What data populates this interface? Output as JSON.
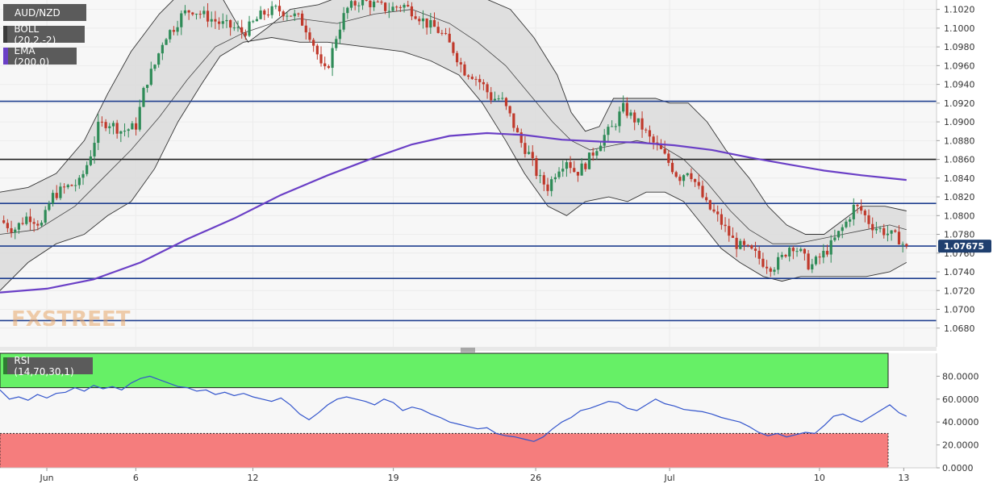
{
  "legend": {
    "symbol": "AUD/NZD",
    "boll": "BOLL (20,2,-2)",
    "ema": "EMA (200,0)",
    "rsi": "RSI (14,70,30,1)"
  },
  "watermark": "FXSTREET",
  "price_tag": "1.07675",
  "colors": {
    "up": "#2e8b57",
    "down": "#c0392b",
    "ema": "#6a3fc6",
    "hline": "#1f3f8f",
    "band_fill": "#dcdcdc",
    "rsi_line": "#3355cc",
    "overbought": "#66f066",
    "oversold": "#f57d7d",
    "tag": "#1f3f6f"
  },
  "chart_data": [
    {
      "type": "candlestick",
      "title": "AUD/NZD",
      "ylim": [
        1.066,
        1.103
      ],
      "yticks": [
        "1.1020",
        "1.1000",
        "1.0980",
        "1.0960",
        "1.0940",
        "1.0920",
        "1.0900",
        "1.0880",
        "1.0860",
        "1.0840",
        "1.0820",
        "1.0800",
        "1.0780",
        "1.0760",
        "1.0740",
        "1.0720",
        "1.0700",
        "1.0680"
      ],
      "xticks": [
        {
          "label": "Jun",
          "x": 0.05
        },
        {
          "label": "6",
          "x": 0.145
        },
        {
          "label": "12",
          "x": 0.27
        },
        {
          "label": "19",
          "x": 0.42
        },
        {
          "label": "26",
          "x": 0.572
        },
        {
          "label": "Jul",
          "x": 0.715
        },
        {
          "label": "10",
          "x": 0.875
        },
        {
          "label": "13",
          "x": 0.965
        }
      ],
      "last_price": 1.07675,
      "horizontal_levels": [
        {
          "value": 1.0922,
          "color": "#1f3f8f"
        },
        {
          "value": 1.086,
          "color": "#222222"
        },
        {
          "value": 1.0813,
          "color": "#1f3f8f"
        },
        {
          "value": 1.07675,
          "color": "#1f3f8f"
        },
        {
          "value": 1.0733,
          "color": "#1f3f8f"
        },
        {
          "value": 1.0688,
          "color": "#1f3f8f"
        }
      ],
      "close_path": [
        [
          0.0,
          1.0795
        ],
        [
          0.015,
          1.0785
        ],
        [
          0.03,
          1.08
        ],
        [
          0.045,
          1.079
        ],
        [
          0.055,
          1.082
        ],
        [
          0.07,
          1.083
        ],
        [
          0.085,
          1.0835
        ],
        [
          0.095,
          1.086
        ],
        [
          0.105,
          1.0895
        ],
        [
          0.115,
          1.09
        ],
        [
          0.13,
          1.089
        ],
        [
          0.145,
          1.0895
        ],
        [
          0.155,
          1.094
        ],
        [
          0.165,
          1.096
        ],
        [
          0.175,
          1.099
        ],
        [
          0.185,
          1.1
        ],
        [
          0.195,
          1.1015
        ],
        [
          0.205,
          1.102
        ],
        [
          0.215,
          1.1015
        ],
        [
          0.225,
          1.101
        ],
        [
          0.235,
          1.1005
        ],
        [
          0.25,
          1.1
        ],
        [
          0.26,
          1.0995
        ],
        [
          0.27,
          1.1005
        ],
        [
          0.28,
          1.1015
        ],
        [
          0.295,
          1.102
        ],
        [
          0.31,
          1.1015
        ],
        [
          0.32,
          1.101
        ],
        [
          0.33,
          1.0995
        ],
        [
          0.338,
          1.0975
        ],
        [
          0.345,
          1.095
        ],
        [
          0.352,
          1.0965
        ],
        [
          0.36,
          1.0995
        ],
        [
          0.37,
          1.102
        ],
        [
          0.385,
          1.103
        ],
        [
          0.4,
          1.1025
        ],
        [
          0.415,
          1.102
        ],
        [
          0.43,
          1.1025
        ],
        [
          0.445,
          1.1015
        ],
        [
          0.455,
          1.1005
        ],
        [
          0.465,
          1.1
        ],
        [
          0.475,
          1.099
        ],
        [
          0.485,
          1.0975
        ],
        [
          0.495,
          1.0955
        ],
        [
          0.505,
          1.095
        ],
        [
          0.515,
          1.094
        ],
        [
          0.525,
          1.0925
        ],
        [
          0.535,
          1.0925
        ],
        [
          0.545,
          1.0905
        ],
        [
          0.555,
          1.088
        ],
        [
          0.565,
          1.0865
        ],
        [
          0.575,
          1.084
        ],
        [
          0.585,
          1.083
        ],
        [
          0.595,
          1.085
        ],
        [
          0.605,
          1.086
        ],
        [
          0.615,
          1.0845
        ],
        [
          0.625,
          1.0855
        ],
        [
          0.635,
          1.087
        ],
        [
          0.645,
          1.0885
        ],
        [
          0.655,
          1.0895
        ],
        [
          0.665,
          1.0915
        ],
        [
          0.675,
          1.0905
        ],
        [
          0.685,
          1.0895
        ],
        [
          0.695,
          1.088
        ],
        [
          0.705,
          1.087
        ],
        [
          0.715,
          1.0855
        ],
        [
          0.725,
          1.084
        ],
        [
          0.735,
          1.085
        ],
        [
          0.745,
          1.083
        ],
        [
          0.755,
          1.081
        ],
        [
          0.765,
          1.08
        ],
        [
          0.775,
          1.0785
        ],
        [
          0.785,
          1.077
        ],
        [
          0.795,
          1.0765
        ],
        [
          0.805,
          1.076
        ],
        [
          0.815,
          1.075
        ],
        [
          0.825,
          1.0745
        ],
        [
          0.835,
          1.0755
        ],
        [
          0.845,
          1.077
        ],
        [
          0.855,
          1.076
        ],
        [
          0.865,
          1.0745
        ],
        [
          0.875,
          1.0755
        ],
        [
          0.885,
          1.0765
        ],
        [
          0.895,
          1.078
        ],
        [
          0.905,
          1.0795
        ],
        [
          0.912,
          1.081
        ],
        [
          0.92,
          1.0805
        ],
        [
          0.93,
          1.079
        ],
        [
          0.94,
          1.0785
        ],
        [
          0.95,
          1.078
        ],
        [
          0.96,
          1.0775
        ],
        [
          0.968,
          1.0765
        ]
      ],
      "upper_band": [
        [
          0.0,
          1.0825
        ],
        [
          0.03,
          1.083
        ],
        [
          0.06,
          1.0845
        ],
        [
          0.09,
          1.088
        ],
        [
          0.115,
          1.093
        ],
        [
          0.14,
          1.0975
        ],
        [
          0.17,
          1.1015
        ],
        [
          0.2,
          1.1045
        ],
        [
          0.23,
          1.1045
        ],
        [
          0.25,
          1.101
        ],
        [
          0.265,
          1.0985
        ],
        [
          0.285,
          1.1
        ],
        [
          0.31,
          1.102
        ],
        [
          0.34,
          1.1025
        ],
        [
          0.38,
          1.104
        ],
        [
          0.42,
          1.105
        ],
        [
          0.45,
          1.1045
        ],
        [
          0.48,
          1.104
        ],
        [
          0.51,
          1.1035
        ],
        [
          0.545,
          1.102
        ],
        [
          0.57,
          1.099
        ],
        [
          0.595,
          1.095
        ],
        [
          0.61,
          1.091
        ],
        [
          0.625,
          1.089
        ],
        [
          0.64,
          1.0895
        ],
        [
          0.655,
          1.0925
        ],
        [
          0.68,
          1.0925
        ],
        [
          0.7,
          1.0925
        ],
        [
          0.715,
          1.092
        ],
        [
          0.735,
          1.092
        ],
        [
          0.755,
          1.09
        ],
        [
          0.775,
          1.087
        ],
        [
          0.8,
          1.084
        ],
        [
          0.82,
          1.081
        ],
        [
          0.84,
          1.079
        ],
        [
          0.86,
          1.078
        ],
        [
          0.88,
          1.078
        ],
        [
          0.9,
          1.0795
        ],
        [
          0.92,
          1.081
        ],
        [
          0.945,
          1.081
        ],
        [
          0.968,
          1.0805
        ]
      ],
      "middle_band": [
        [
          0.0,
          1.078
        ],
        [
          0.04,
          1.0785
        ],
        [
          0.08,
          1.081
        ],
        [
          0.11,
          1.084
        ],
        [
          0.14,
          1.087
        ],
        [
          0.17,
          1.0905
        ],
        [
          0.2,
          1.0945
        ],
        [
          0.23,
          1.098
        ],
        [
          0.26,
          1.0995
        ],
        [
          0.29,
          1.1005
        ],
        [
          0.32,
          1.101
        ],
        [
          0.36,
          1.1005
        ],
        [
          0.4,
          1.1015
        ],
        [
          0.44,
          1.102
        ],
        [
          0.48,
          1.1005
        ],
        [
          0.51,
          1.0985
        ],
        [
          0.54,
          1.096
        ],
        [
          0.565,
          1.093
        ],
        [
          0.59,
          1.09
        ],
        [
          0.61,
          1.088
        ],
        [
          0.63,
          1.087
        ],
        [
          0.655,
          1.0875
        ],
        [
          0.68,
          1.088
        ],
        [
          0.705,
          1.0875
        ],
        [
          0.73,
          1.086
        ],
        [
          0.755,
          1.0835
        ],
        [
          0.78,
          1.0805
        ],
        [
          0.8,
          1.0785
        ],
        [
          0.825,
          1.077
        ],
        [
          0.85,
          1.077
        ],
        [
          0.875,
          1.0775
        ],
        [
          0.9,
          1.078
        ],
        [
          0.925,
          1.0785
        ],
        [
          0.95,
          1.079
        ],
        [
          0.968,
          1.0785
        ]
      ],
      "lower_band": [
        [
          0.0,
          1.072
        ],
        [
          0.03,
          1.075
        ],
        [
          0.06,
          1.077
        ],
        [
          0.09,
          1.078
        ],
        [
          0.115,
          1.08
        ],
        [
          0.14,
          1.0815
        ],
        [
          0.165,
          1.085
        ],
        [
          0.19,
          1.09
        ],
        [
          0.215,
          1.094
        ],
        [
          0.235,
          1.097
        ],
        [
          0.26,
          1.0985
        ],
        [
          0.29,
          1.099
        ],
        [
          0.32,
          1.0985
        ],
        [
          0.35,
          1.0985
        ],
        [
          0.39,
          1.098
        ],
        [
          0.43,
          1.0975
        ],
        [
          0.46,
          1.0965
        ],
        [
          0.49,
          1.095
        ],
        [
          0.515,
          1.092
        ],
        [
          0.54,
          1.088
        ],
        [
          0.56,
          1.0845
        ],
        [
          0.585,
          1.081
        ],
        [
          0.605,
          1.08
        ],
        [
          0.625,
          1.0815
        ],
        [
          0.65,
          1.082
        ],
        [
          0.67,
          1.0815
        ],
        [
          0.69,
          1.0825
        ],
        [
          0.71,
          1.0825
        ],
        [
          0.73,
          1.0815
        ],
        [
          0.75,
          1.079
        ],
        [
          0.77,
          1.0765
        ],
        [
          0.79,
          1.075
        ],
        [
          0.815,
          1.0735
        ],
        [
          0.835,
          1.073
        ],
        [
          0.855,
          1.0735
        ],
        [
          0.875,
          1.0735
        ],
        [
          0.9,
          1.0735
        ],
        [
          0.925,
          1.0735
        ],
        [
          0.95,
          1.074
        ],
        [
          0.968,
          1.075
        ]
      ],
      "ema_line": [
        [
          0.0,
          1.0718
        ],
        [
          0.05,
          1.0722
        ],
        [
          0.1,
          1.0732
        ],
        [
          0.15,
          1.075
        ],
        [
          0.2,
          1.0775
        ],
        [
          0.25,
          1.0797
        ],
        [
          0.3,
          1.0822
        ],
        [
          0.35,
          1.0843
        ],
        [
          0.4,
          1.0862
        ],
        [
          0.44,
          1.0876
        ],
        [
          0.48,
          1.0885
        ],
        [
          0.52,
          1.0888
        ],
        [
          0.56,
          1.0886
        ],
        [
          0.6,
          1.0881
        ],
        [
          0.64,
          1.0879
        ],
        [
          0.68,
          1.0878
        ],
        [
          0.72,
          1.0875
        ],
        [
          0.76,
          1.087
        ],
        [
          0.8,
          1.0862
        ],
        [
          0.84,
          1.0855
        ],
        [
          0.88,
          1.0848
        ],
        [
          0.92,
          1.0843
        ],
        [
          0.968,
          1.0838
        ]
      ]
    },
    {
      "type": "line",
      "title": "RSI (14,70,30,1)",
      "ylim": [
        0,
        100
      ],
      "yticks": [
        "80.0000",
        "60.0000",
        "40.0000",
        "20.0000",
        "0.0000"
      ],
      "overbought": 70,
      "oversold": 30,
      "x": [
        0.0,
        0.01,
        0.02,
        0.03,
        0.04,
        0.05,
        0.06,
        0.07,
        0.08,
        0.09,
        0.1,
        0.11,
        0.12,
        0.13,
        0.14,
        0.15,
        0.16,
        0.17,
        0.18,
        0.19,
        0.2,
        0.21,
        0.22,
        0.23,
        0.24,
        0.25,
        0.26,
        0.27,
        0.28,
        0.29,
        0.3,
        0.31,
        0.32,
        0.33,
        0.34,
        0.35,
        0.36,
        0.37,
        0.38,
        0.39,
        0.4,
        0.41,
        0.42,
        0.43,
        0.44,
        0.45,
        0.46,
        0.47,
        0.48,
        0.49,
        0.5,
        0.51,
        0.52,
        0.53,
        0.54,
        0.55,
        0.56,
        0.57,
        0.58,
        0.59,
        0.6,
        0.61,
        0.62,
        0.63,
        0.64,
        0.65,
        0.66,
        0.67,
        0.68,
        0.69,
        0.7,
        0.71,
        0.72,
        0.73,
        0.74,
        0.75,
        0.76,
        0.77,
        0.78,
        0.79,
        0.8,
        0.81,
        0.82,
        0.83,
        0.84,
        0.85,
        0.86,
        0.87,
        0.88,
        0.89,
        0.9,
        0.91,
        0.92,
        0.93,
        0.94,
        0.95,
        0.96,
        0.968
      ],
      "values": [
        68,
        60,
        62,
        59,
        64,
        61,
        65,
        66,
        70,
        67,
        72,
        69,
        71,
        68,
        74,
        78,
        80,
        77,
        74,
        71,
        70,
        67,
        68,
        64,
        66,
        63,
        65,
        62,
        60,
        58,
        61,
        55,
        47,
        42,
        48,
        55,
        60,
        62,
        60,
        58,
        55,
        60,
        57,
        50,
        53,
        51,
        47,
        44,
        40,
        38,
        36,
        34,
        35,
        30,
        28,
        27,
        25,
        23,
        27,
        34,
        40,
        44,
        50,
        52,
        55,
        58,
        57,
        52,
        50,
        55,
        60,
        56,
        54,
        51,
        50,
        49,
        47,
        44,
        42,
        40,
        36,
        31,
        28,
        30,
        27,
        29,
        31,
        30,
        37,
        45,
        47,
        43,
        40,
        45,
        50,
        55,
        48,
        45
      ]
    }
  ]
}
